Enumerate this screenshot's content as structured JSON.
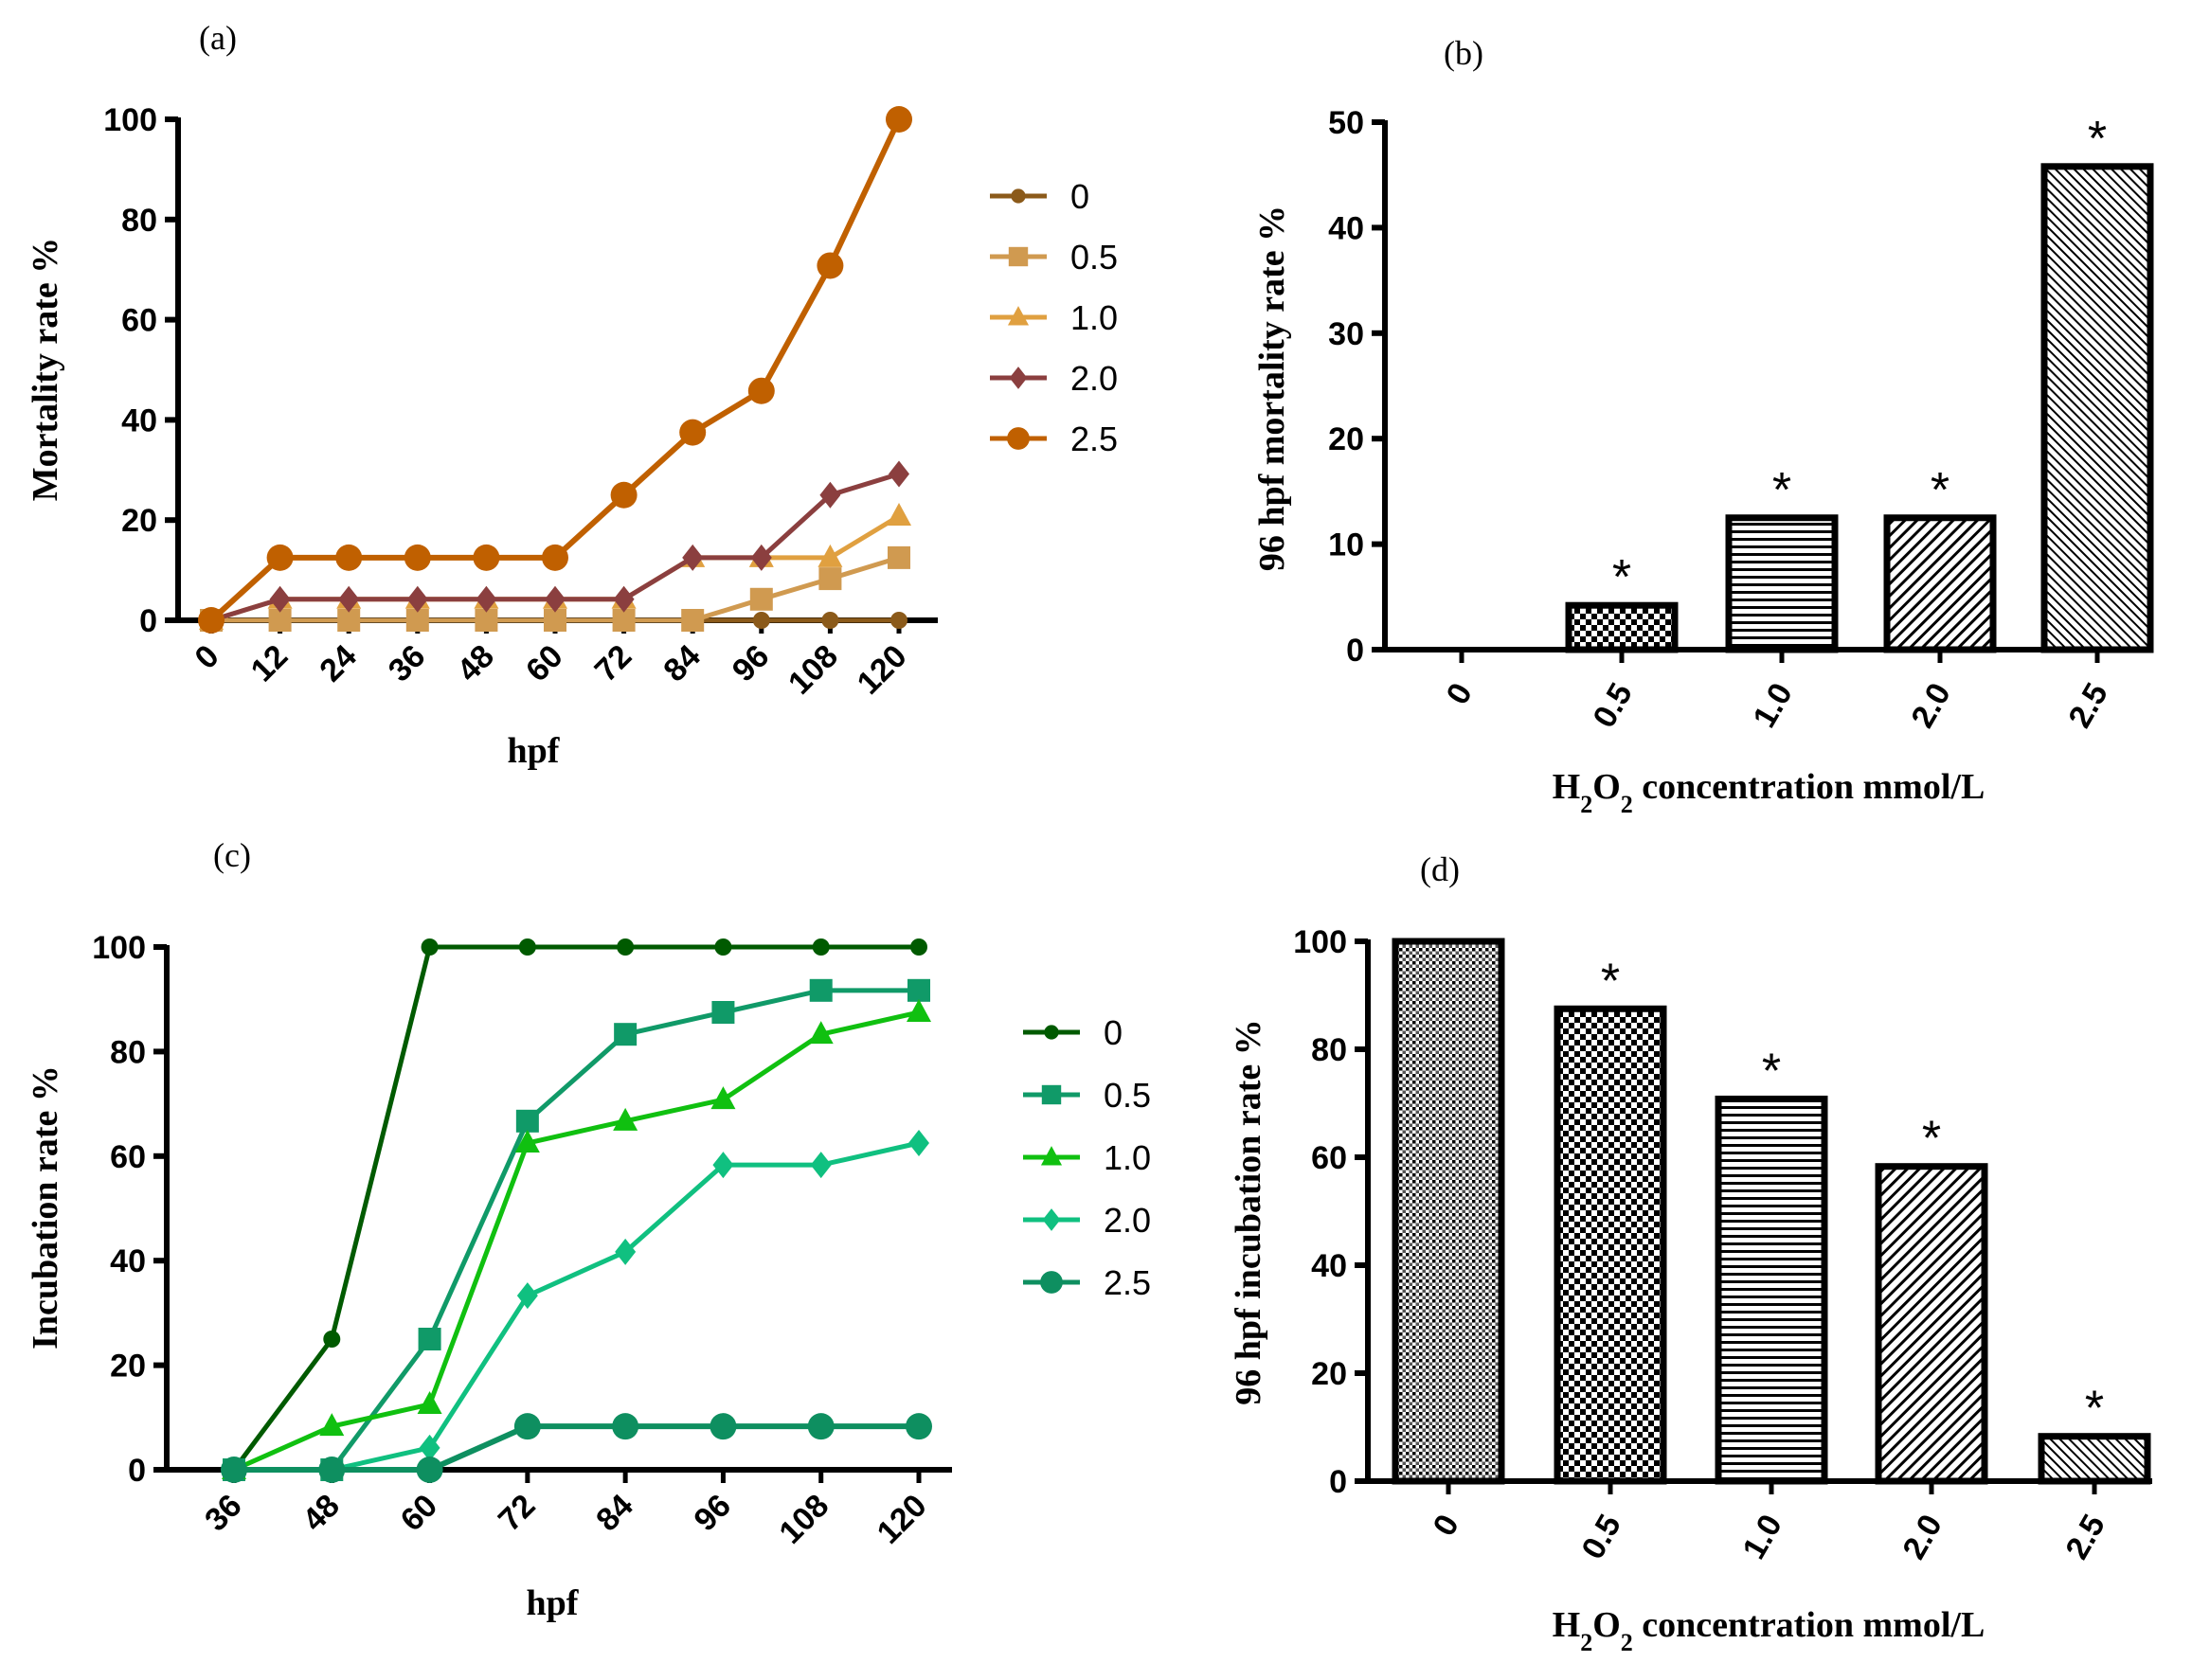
{
  "chart_data": [
    {
      "id": "a",
      "panel_label": "(a)",
      "type": "line",
      "xlabel": "hpf",
      "ylabel": "Mortality rate %",
      "ylim": [
        0,
        100
      ],
      "yticks": [
        0,
        20,
        40,
        60,
        80,
        100
      ],
      "x": [
        0,
        12,
        24,
        36,
        48,
        60,
        72,
        84,
        96,
        108,
        120
      ],
      "legend_position": "right",
      "series": [
        {
          "name": "0",
          "marker": "circle-small",
          "color": "#8B5A1A",
          "values": [
            0,
            0,
            0,
            0,
            0,
            0,
            0,
            0,
            0,
            0,
            0
          ]
        },
        {
          "name": "0.5",
          "marker": "square",
          "color": "#D09A50",
          "values": [
            0,
            0,
            0,
            0,
            0,
            0,
            0,
            0,
            4.2,
            8.3,
            12.5
          ]
        },
        {
          "name": "1.0",
          "marker": "triangle",
          "color": "#E0A040",
          "values": [
            0,
            4.2,
            4.2,
            4.2,
            4.2,
            4.2,
            4.2,
            12.5,
            12.5,
            12.5,
            20.8
          ]
        },
        {
          "name": "2.0",
          "marker": "diamond",
          "color": "#8B3F3F",
          "values": [
            0,
            4.2,
            4.2,
            4.2,
            4.2,
            4.2,
            4.2,
            12.5,
            12.5,
            25,
            29.2
          ]
        },
        {
          "name": "2.5",
          "marker": "circle",
          "color": "#C06000",
          "values": [
            0,
            12.5,
            12.5,
            12.5,
            12.5,
            12.5,
            25,
            37.5,
            45.8,
            70.8,
            100
          ]
        }
      ]
    },
    {
      "id": "b",
      "panel_label": "(b)",
      "type": "bar",
      "xlabel_parts": [
        "H",
        "2",
        "O",
        "2",
        " concentration mmol/L"
      ],
      "ylabel": "96 hpf mortality rate %",
      "ylim": [
        0,
        50
      ],
      "yticks": [
        0,
        10,
        20,
        30,
        40,
        50
      ],
      "categories": [
        "0",
        "0.5",
        "1.0",
        "2.0",
        "2.5"
      ],
      "values": [
        0,
        4.2,
        12.5,
        12.5,
        45.8
      ],
      "patterns": [
        "none",
        "checker",
        "hlines",
        "diag",
        "diag-fine"
      ],
      "annotations": [
        "",
        "*",
        "*",
        "*",
        "*"
      ]
    },
    {
      "id": "c",
      "panel_label": "(c)",
      "type": "line",
      "xlabel": "hpf",
      "ylabel": "Incubation rate %",
      "ylim": [
        0,
        100
      ],
      "yticks": [
        0,
        20,
        40,
        60,
        80,
        100
      ],
      "x": [
        36,
        48,
        60,
        72,
        84,
        96,
        108,
        120
      ],
      "legend_position": "right",
      "series": [
        {
          "name": "0",
          "marker": "circle-small",
          "color": "#005A00",
          "values": [
            0,
            25,
            100,
            100,
            100,
            100,
            100,
            100
          ]
        },
        {
          "name": "0.5",
          "marker": "square",
          "color": "#109A68",
          "values": [
            0,
            0,
            25,
            66.7,
            83.3,
            87.5,
            91.7,
            91.7
          ]
        },
        {
          "name": "1.0",
          "marker": "triangle",
          "color": "#10C010",
          "values": [
            0,
            8.3,
            12.5,
            62.5,
            66.7,
            70.8,
            83.3,
            87.5
          ]
        },
        {
          "name": "2.0",
          "marker": "diamond",
          "color": "#10C080",
          "values": [
            0,
            0,
            4.2,
            33.3,
            41.7,
            58.3,
            58.3,
            62.5
          ]
        },
        {
          "name": "2.5",
          "marker": "circle",
          "color": "#0E8F60",
          "values": [
            0,
            0,
            0,
            8.3,
            8.3,
            8.3,
            8.3,
            8.3
          ]
        }
      ]
    },
    {
      "id": "d",
      "panel_label": "(d)",
      "type": "bar",
      "xlabel_parts": [
        "H",
        "2",
        "O",
        "2",
        " concentration mmol/L"
      ],
      "ylabel": "96 hpf incubation rate %",
      "ylim": [
        0,
        100
      ],
      "yticks": [
        0,
        20,
        40,
        60,
        80,
        100
      ],
      "categories": [
        "0",
        "0.5",
        "1.0",
        "2.0",
        "2.5"
      ],
      "values": [
        100,
        87.5,
        70.8,
        58.3,
        8.3
      ],
      "patterns": [
        "dots",
        "checker",
        "hlines",
        "diag",
        "diag-fine"
      ],
      "annotations": [
        "",
        "*",
        "*",
        "*",
        "*"
      ]
    }
  ]
}
